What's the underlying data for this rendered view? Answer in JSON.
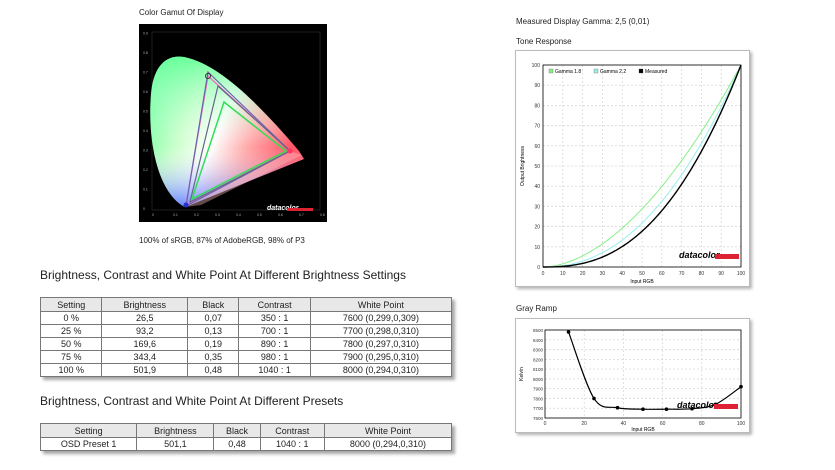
{
  "gamut": {
    "title": "Color Gamut Of Display",
    "summary": "100% of sRGB, 87% of AdobeRGB, 98% of P3",
    "logo": "datacolor",
    "x_ticks": [
      "0",
      "0.1",
      "0.2",
      "0.3",
      "0.4",
      "0.5",
      "0.6",
      "0.7",
      "0.8"
    ],
    "y_ticks": [
      "0",
      "0.1",
      "0.2",
      "0.3",
      "0.4",
      "0.5",
      "0.6",
      "0.7",
      "0.8",
      "0.9"
    ]
  },
  "brightness_table": {
    "title": "Brightness, Contrast and White Point At Different Brightness Settings",
    "headers": [
      "Setting",
      "Brightness",
      "Black",
      "Contrast",
      "White Point"
    ],
    "rows": [
      [
        "0 %",
        "26,5",
        "0,07",
        "350 : 1",
        "7600 (0,299,0,309)"
      ],
      [
        "25 %",
        "93,2",
        "0,13",
        "700 : 1",
        "7700 (0,298,0,310)"
      ],
      [
        "50 %",
        "169,6",
        "0,19",
        "890 : 1",
        "7800 (0,297,0,310)"
      ],
      [
        "75 %",
        "343,4",
        "0,35",
        "980 : 1",
        "7900 (0,295,0,310)"
      ],
      [
        "100 %",
        "501,9",
        "0,48",
        "1040 : 1",
        "8000 (0,294,0,310)"
      ]
    ]
  },
  "preset_table": {
    "title": "Brightness, Contrast and White Point At Different Presets",
    "headers": [
      "Setting",
      "Brightness",
      "Black",
      "Contrast",
      "White Point"
    ],
    "rows": [
      [
        "OSD Preset 1",
        "501,1",
        "0,48",
        "1040 : 1",
        "8000 (0,294,0,310)"
      ]
    ]
  },
  "gamma": {
    "measured_text": "Measured Display Gamma: 2,5 (0,01)"
  },
  "chart_data": [
    {
      "type": "line",
      "title": "Tone Response",
      "xlabel": "Input RGB",
      "ylabel": "Output Brightness",
      "xlim": [
        0,
        100
      ],
      "ylim": [
        0,
        100
      ],
      "x_ticks": [
        0,
        10,
        20,
        30,
        40,
        50,
        60,
        70,
        80,
        90,
        100
      ],
      "y_ticks": [
        0,
        10,
        20,
        30,
        40,
        50,
        60,
        70,
        80,
        90,
        100
      ],
      "grid": true,
      "legend": "top-left",
      "series": [
        {
          "name": "Gamma 1.8",
          "color": "#88ee88",
          "gamma": 1.8
        },
        {
          "name": "Gamma 2.2",
          "color": "#99eeee",
          "gamma": 2.2
        },
        {
          "name": "Measured",
          "color": "#000000",
          "gamma": 2.5
        }
      ]
    },
    {
      "type": "line",
      "title": "Gray Ramp",
      "xlabel": "Input RGB",
      "ylabel": "Kelvin",
      "xlim": [
        0,
        100
      ],
      "ylim": [
        7600,
        8500
      ],
      "x_ticks": [
        0,
        20,
        40,
        60,
        80,
        100
      ],
      "y_ticks": [
        7600,
        7700,
        7800,
        7900,
        8000,
        8100,
        8200,
        8300,
        8400,
        8500
      ],
      "grid": true,
      "series": [
        {
          "name": "",
          "color": "#000000",
          "x": [
            12,
            25,
            37,
            50,
            62,
            75,
            87,
            100
          ],
          "y": [
            8480,
            7800,
            7705,
            7690,
            7690,
            7695,
            7740,
            7920
          ]
        }
      ]
    }
  ]
}
